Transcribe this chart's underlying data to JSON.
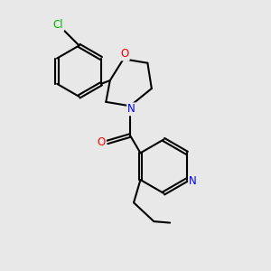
{
  "background_color": "#e8e8e8",
  "bond_color": "#000000",
  "bond_width": 1.5,
  "atom_colors": {
    "Cl": "#00bb00",
    "N": "#0000ff",
    "O": "#ff0000",
    "C": "#000000"
  },
  "figsize": [
    3.0,
    3.0
  ],
  "dpi": 100
}
